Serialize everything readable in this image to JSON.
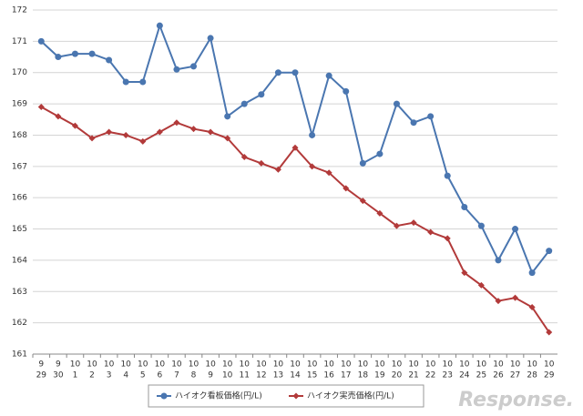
{
  "chart_data": {
    "type": "line",
    "categories": [
      [
        "9",
        "29"
      ],
      [
        "9",
        "30"
      ],
      [
        "10",
        "1"
      ],
      [
        "10",
        "2"
      ],
      [
        "10",
        "3"
      ],
      [
        "10",
        "4"
      ],
      [
        "10",
        "5"
      ],
      [
        "10",
        "6"
      ],
      [
        "10",
        "7"
      ],
      [
        "10",
        "8"
      ],
      [
        "10",
        "9"
      ],
      [
        "10",
        "10"
      ],
      [
        "10",
        "11"
      ],
      [
        "10",
        "12"
      ],
      [
        "10",
        "13"
      ],
      [
        "10",
        "14"
      ],
      [
        "10",
        "15"
      ],
      [
        "10",
        "16"
      ],
      [
        "10",
        "17"
      ],
      [
        "10",
        "18"
      ],
      [
        "10",
        "19"
      ],
      [
        "10",
        "20"
      ],
      [
        "10",
        "21"
      ],
      [
        "10",
        "22"
      ],
      [
        "10",
        "23"
      ],
      [
        "10",
        "24"
      ],
      [
        "10",
        "25"
      ],
      [
        "10",
        "26"
      ],
      [
        "10",
        "27"
      ],
      [
        "10",
        "28"
      ],
      [
        "10",
        "29"
      ]
    ],
    "series": [
      {
        "name": "ハイオク看板価格(円/L)",
        "color": "#4a76b0",
        "marker": "circle",
        "values": [
          171.0,
          170.5,
          170.6,
          170.6,
          170.4,
          169.7,
          169.7,
          171.5,
          170.1,
          170.2,
          171.1,
          168.6,
          169.0,
          169.3,
          170.0,
          170.0,
          168.0,
          169.9,
          169.4,
          167.1,
          167.4,
          169.0,
          168.4,
          168.6,
          166.7,
          165.7,
          165.1,
          164.0,
          165.0,
          163.6,
          164.3
        ]
      },
      {
        "name": "ハイオク実売価格(円/L)",
        "color": "#b23a3a",
        "marker": "diamond",
        "values": [
          168.9,
          168.6,
          168.3,
          167.9,
          168.1,
          168.0,
          167.8,
          168.1,
          168.4,
          168.2,
          168.1,
          167.9,
          167.3,
          167.1,
          166.9,
          167.6,
          167.0,
          166.8,
          166.3,
          165.9,
          165.5,
          165.1,
          165.2,
          164.9,
          164.7,
          163.6,
          163.2,
          162.7,
          162.8,
          162.5,
          161.7
        ]
      }
    ],
    "ylim": [
      161,
      172
    ],
    "yticks": [
      161,
      162,
      163,
      164,
      165,
      166,
      167,
      168,
      169,
      170,
      171,
      172
    ],
    "grid": true,
    "legend": "bottom",
    "watermark": "Response."
  }
}
